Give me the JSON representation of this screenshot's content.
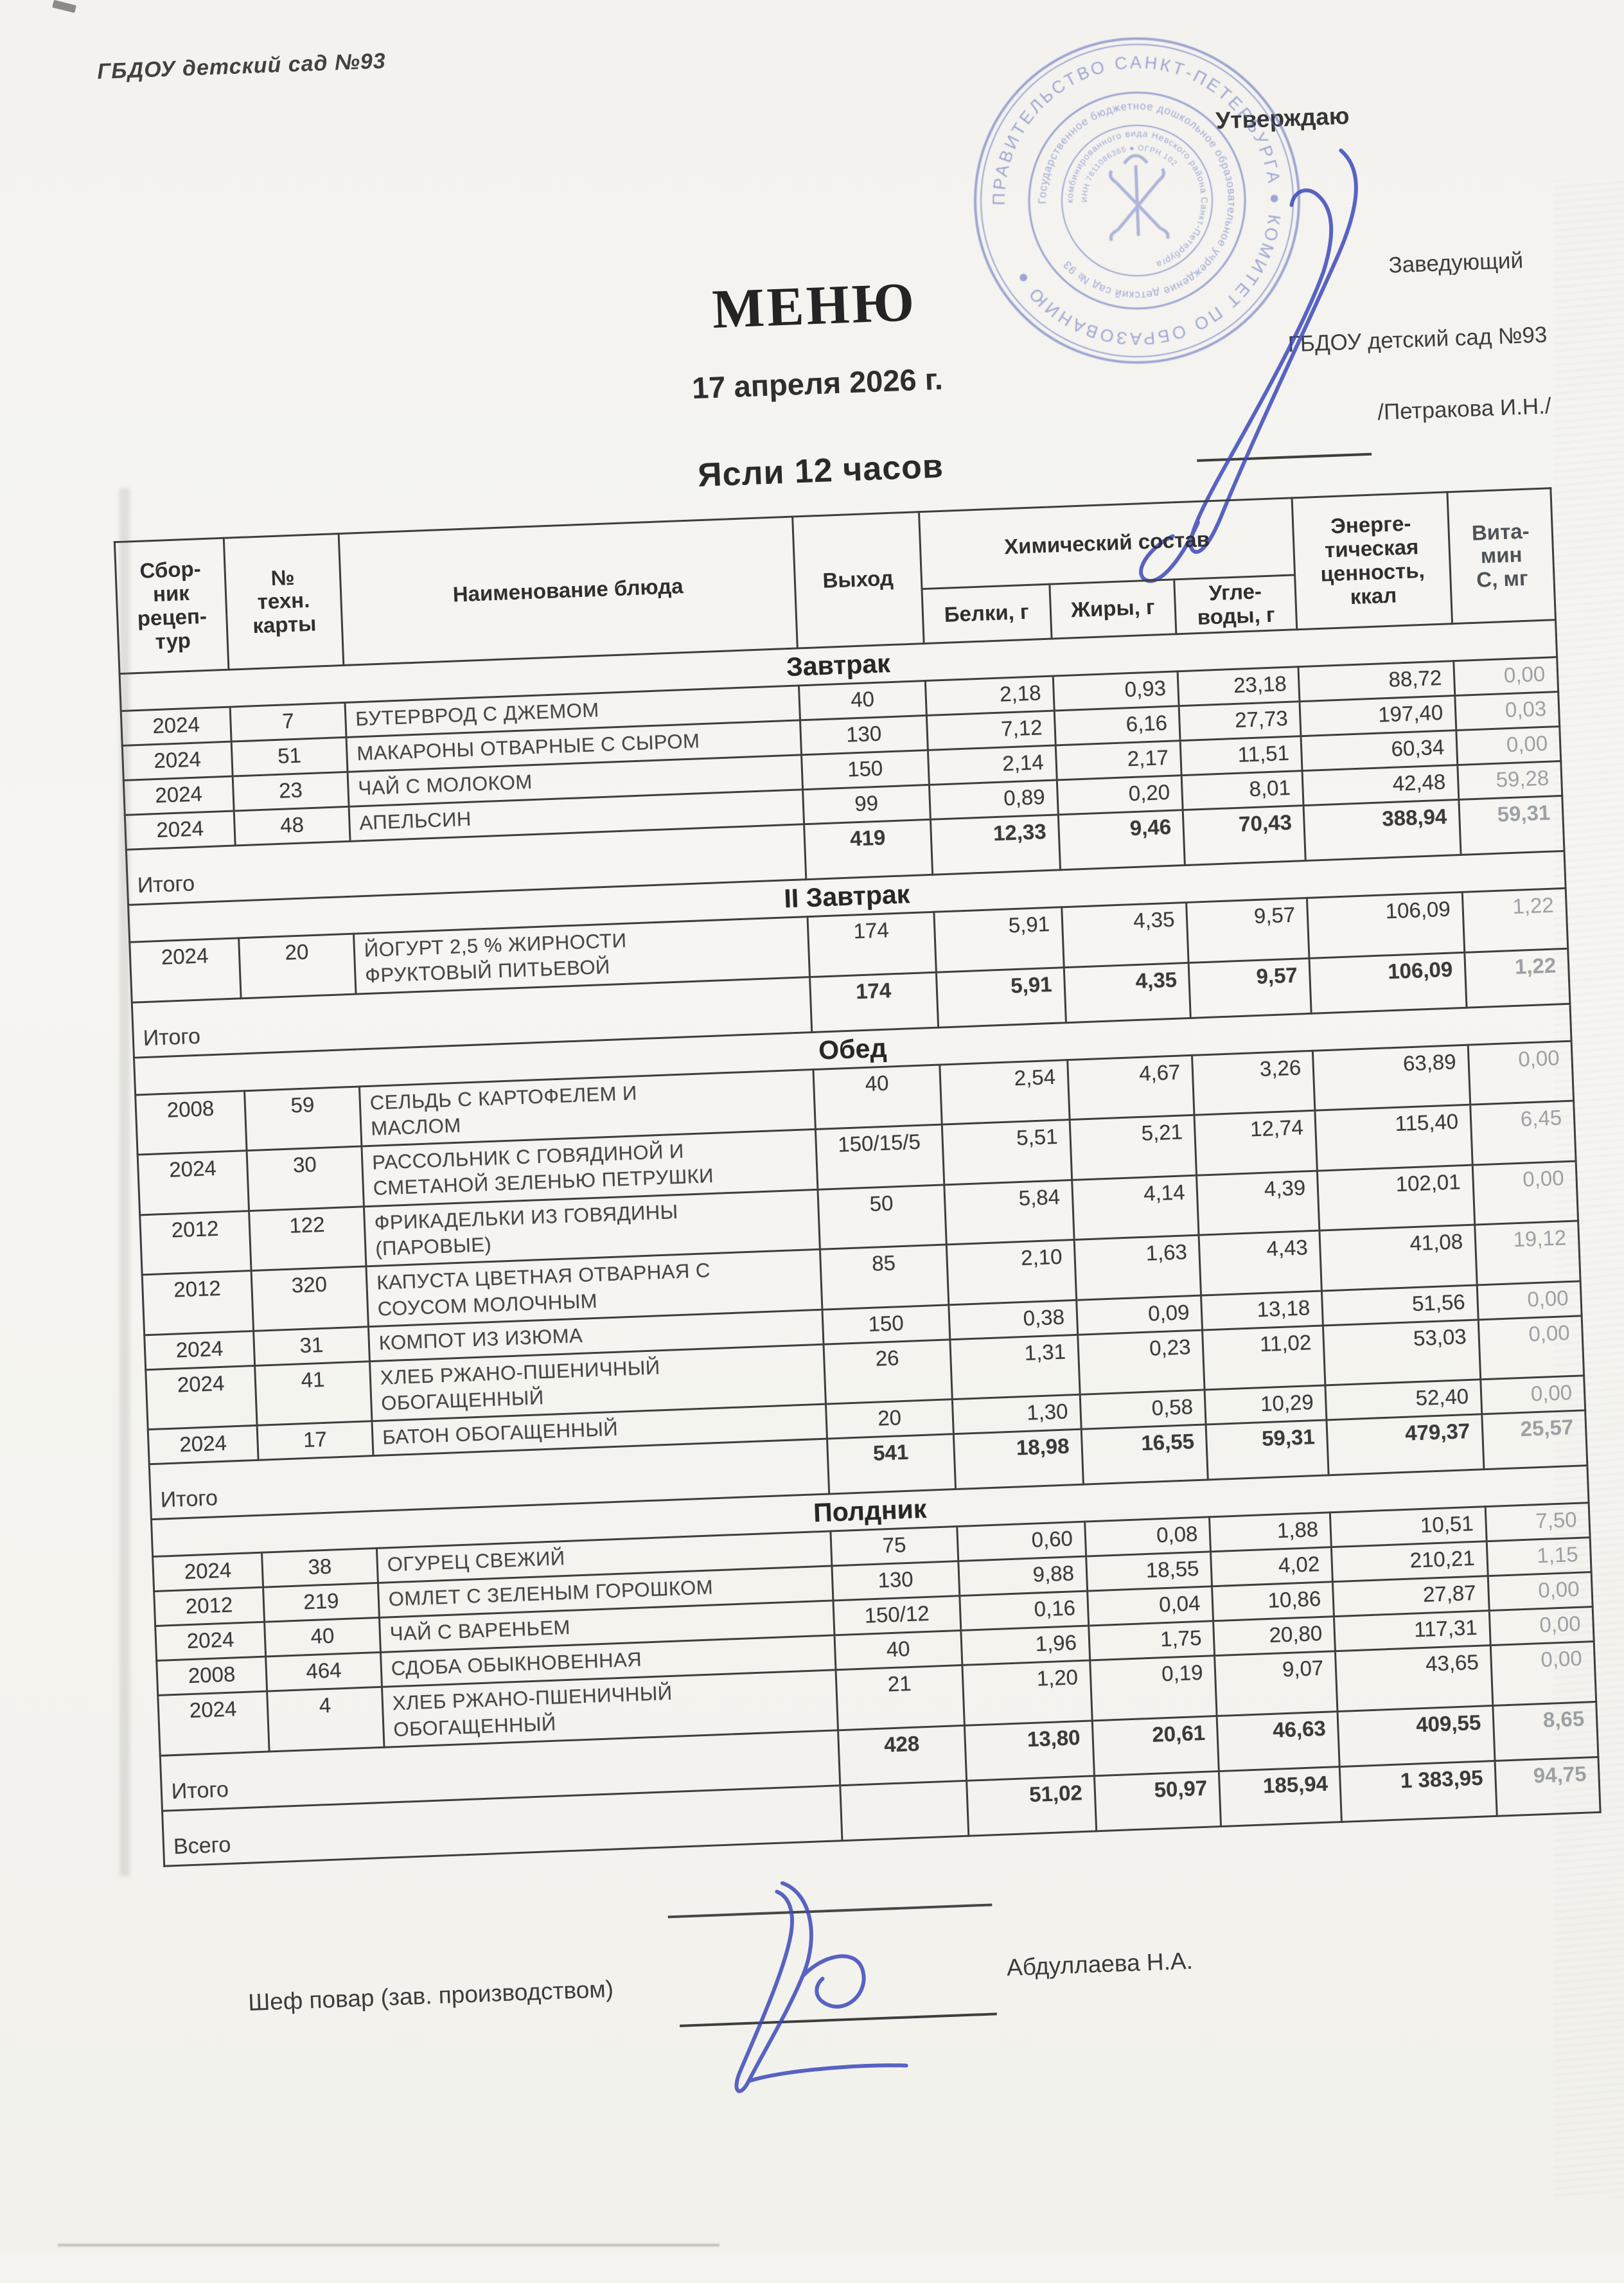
{
  "doc": {
    "org": "ГБДОУ детский сад №93",
    "approval": {
      "approve": "Утверждаю",
      "role": "Заведующий",
      "org": "ГБДОУ детский сад №93",
      "name": "/Петракова И.Н./"
    },
    "title": "МЕНЮ",
    "date": "17 апреля 2026 г.",
    "group": "Ясли 12 часов",
    "chef_label": "Шеф повар (зав. производством)",
    "chef_name": "Абдуллаева Н.А."
  },
  "stamp": {
    "ring1": "ПРАВИТЕЛЬСТВО САНКТ-ПЕТЕРБУРГА ● КОМИТЕТ ПО ОБРАЗОВАНИЮ ●",
    "ring2": "Государственное бюджетное дошкольное образовательное учреждение детский сад № 93",
    "ring3": "комбинированного вида Невского района Санкт-Петербурга",
    "ring4": "ИНН 7811086365 ● ОГРН 102"
  },
  "table": {
    "headers": {
      "col_book": "Сбор-\nник\nрецеп-\nтур",
      "col_card": "№\nтехн.\nкарты",
      "col_dish": "Наименование блюда",
      "col_out": "Выход",
      "col_chem": "Химический состав",
      "col_prot": "Белки, г",
      "col_fat": "Жиры, г",
      "col_carb": "Угле-\nводы, г",
      "col_energy": "Энерге-\nтическая\nценность,\nккал",
      "col_vitc": "Вита-\nмин\nС, мг",
      "total_label": "Итого",
      "grand_label": "Всего"
    },
    "sections": [
      {
        "name": "Завтрак",
        "rows": [
          {
            "book": "2024",
            "card": "7",
            "dish": "БУТЕРВРОД С ДЖЕМОМ",
            "out": "40",
            "prot": "2,18",
            "fat": "0,93",
            "carb": "23,18",
            "kcal": "88,72",
            "vitc": "0,00"
          },
          {
            "book": "2024",
            "card": "51",
            "dish": "МАКАРОНЫ ОТВАРНЫЕ С СЫРОМ",
            "out": "130",
            "prot": "7,12",
            "fat": "6,16",
            "carb": "27,73",
            "kcal": "197,40",
            "vitc": "0,03"
          },
          {
            "book": "2024",
            "card": "23",
            "dish": "ЧАЙ С МОЛОКОМ",
            "out": "150",
            "prot": "2,14",
            "fat": "2,17",
            "carb": "11,51",
            "kcal": "60,34",
            "vitc": "0,00"
          },
          {
            "book": "2024",
            "card": "48",
            "dish": "АПЕЛЬСИН",
            "out": "99",
            "prot": "0,89",
            "fat": "0,20",
            "carb": "8,01",
            "kcal": "42,48",
            "vitc": "59,28"
          }
        ],
        "total": {
          "out": "419",
          "prot": "12,33",
          "fat": "9,46",
          "carb": "70,43",
          "kcal": "388,94",
          "vitc": "59,31"
        }
      },
      {
        "name": "II Завтрак",
        "rows": [
          {
            "book": "2024",
            "card": "20",
            "dish": "ЙОГУРТ 2,5 % ЖИРНОСТИ\nФРУКТОВЫЙ ПИТЬЕВОЙ",
            "out": "174",
            "prot": "5,91",
            "fat": "4,35",
            "carb": "9,57",
            "kcal": "106,09",
            "vitc": "1,22"
          }
        ],
        "total": {
          "out": "174",
          "prot": "5,91",
          "fat": "4,35",
          "carb": "9,57",
          "kcal": "106,09",
          "vitc": "1,22"
        }
      },
      {
        "name": "Обед",
        "rows": [
          {
            "book": "2008",
            "card": "59",
            "dish": "СЕЛЬДЬ С КАРТОФЕЛЕМ И\nМАСЛОМ",
            "out": "40",
            "prot": "2,54",
            "fat": "4,67",
            "carb": "3,26",
            "kcal": "63,89",
            "vitc": "0,00"
          },
          {
            "book": "2024",
            "card": "30",
            "dish": "РАССОЛЬНИК С ГОВЯДИНОЙ И\nСМЕТАНОЙ ЗЕЛЕНЬЮ ПЕТРУШКИ",
            "out": "150/15/5",
            "prot": "5,51",
            "fat": "5,21",
            "carb": "12,74",
            "kcal": "115,40",
            "vitc": "6,45"
          },
          {
            "book": "2012",
            "card": "122",
            "dish": "ФРИКАДЕЛЬКИ ИЗ ГОВЯДИНЫ\n(ПАРОВЫЕ)",
            "out": "50",
            "prot": "5,84",
            "fat": "4,14",
            "carb": "4,39",
            "kcal": "102,01",
            "vitc": "0,00"
          },
          {
            "book": "2012",
            "card": "320",
            "dish": "КАПУСТА ЦВЕТНАЯ ОТВАРНАЯ С\nСОУСОМ МОЛОЧНЫМ",
            "out": "85",
            "prot": "2,10",
            "fat": "1,63",
            "carb": "4,43",
            "kcal": "41,08",
            "vitc": "19,12"
          },
          {
            "book": "2024",
            "card": "31",
            "dish": "КОМПОТ ИЗ ИЗЮМА",
            "out": "150",
            "prot": "0,38",
            "fat": "0,09",
            "carb": "13,18",
            "kcal": "51,56",
            "vitc": "0,00"
          },
          {
            "book": "2024",
            "card": "41",
            "dish": "ХЛЕБ РЖАНО-ПШЕНИЧНЫЙ\nОБОГАЩЕННЫЙ",
            "out": "26",
            "prot": "1,31",
            "fat": "0,23",
            "carb": "11,02",
            "kcal": "53,03",
            "vitc": "0,00"
          },
          {
            "book": "2024",
            "card": "17",
            "dish": "БАТОН ОБОГАЩЕННЫЙ",
            "out": "20",
            "prot": "1,30",
            "fat": "0,58",
            "carb": "10,29",
            "kcal": "52,40",
            "vitc": "0,00"
          }
        ],
        "total": {
          "out": "541",
          "prot": "18,98",
          "fat": "16,55",
          "carb": "59,31",
          "kcal": "479,37",
          "vitc": "25,57"
        }
      },
      {
        "name": "Полдник",
        "rows": [
          {
            "book": "2024",
            "card": "38",
            "dish": "ОГУРЕЦ СВЕЖИЙ",
            "out": "75",
            "prot": "0,60",
            "fat": "0,08",
            "carb": "1,88",
            "kcal": "10,51",
            "vitc": "7,50"
          },
          {
            "book": "2012",
            "card": "219",
            "dish": "ОМЛЕТ С ЗЕЛЕНЫМ ГОРОШКОМ",
            "out": "130",
            "prot": "9,88",
            "fat": "18,55",
            "carb": "4,02",
            "kcal": "210,21",
            "vitc": "1,15"
          },
          {
            "book": "2024",
            "card": "40",
            "dish": "ЧАЙ С ВАРЕНЬЕМ",
            "out": "150/12",
            "prot": "0,16",
            "fat": "0,04",
            "carb": "10,86",
            "kcal": "27,87",
            "vitc": "0,00"
          },
          {
            "book": "2008",
            "card": "464",
            "dish": "СДОБА ОБЫКНОВЕННАЯ",
            "out": "40",
            "prot": "1,96",
            "fat": "1,75",
            "carb": "20,80",
            "kcal": "117,31",
            "vitc": "0,00"
          },
          {
            "book": "2024",
            "card": "4",
            "dish": "ХЛЕБ РЖАНО-ПШЕНИЧНЫЙ\nОБОГАЩЕННЫЙ",
            "out": "21",
            "prot": "1,20",
            "fat": "0,19",
            "carb": "9,07",
            "kcal": "43,65",
            "vitc": "0,00"
          }
        ],
        "total": {
          "out": "428",
          "prot": "13,80",
          "fat": "20,61",
          "carb": "46,63",
          "kcal": "409,55",
          "vitc": "8,65"
        }
      }
    ],
    "grand_total": {
      "out": "",
      "prot": "51,02",
      "fat": "50,97",
      "carb": "185,94",
      "kcal": "1 383,95",
      "vitc": "94,75"
    }
  }
}
